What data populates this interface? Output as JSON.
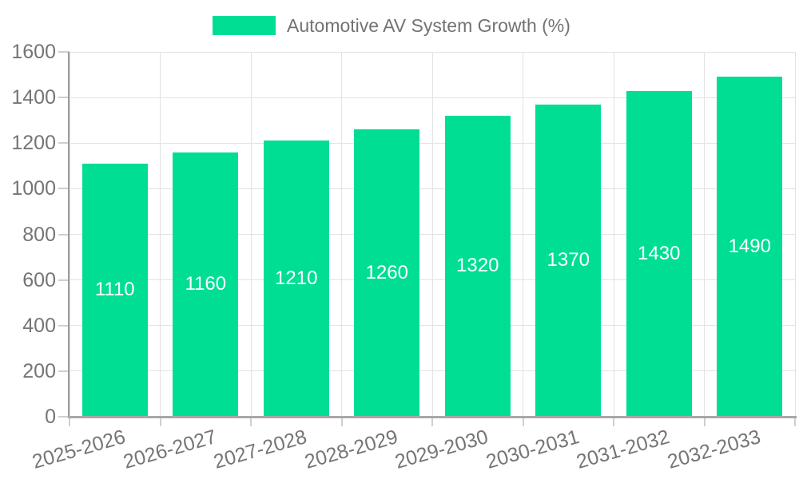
{
  "legend": {
    "label": "Automotive AV System Growth (%)",
    "swatch_color": "#00DE93"
  },
  "chart_data": {
    "type": "bar",
    "title": "",
    "categories": [
      "2025-2026",
      "2026-2027",
      "2027-2028",
      "2028-2029",
      "2029-2030",
      "2030-2031",
      "2031-2032",
      "2032-2033"
    ],
    "series": [
      {
        "name": "Automotive AV System Growth (%)",
        "values": [
          1110,
          1160,
          1210,
          1260,
          1320,
          1370,
          1430,
          1490
        ]
      }
    ],
    "value_labels": [
      "1110",
      "1160",
      "1210",
      "1260",
      "1320",
      "1370",
      "1430",
      "1490"
    ],
    "xlabel": "",
    "ylabel": "",
    "ylim": [
      0,
      1600
    ],
    "yticks": [
      0,
      200,
      400,
      600,
      800,
      1000,
      1200,
      1400,
      1600
    ],
    "grid": "horizontal-and-vertical",
    "legend_position": "top-center",
    "colors": {
      "bar": "#00DE93",
      "value_label": "#ffffff",
      "tick_label": "#757575",
      "legend_text": "#737373",
      "gridline": "#e2e2e2",
      "axis_line": "#a8a8a8",
      "background": "#ffffff"
    }
  }
}
